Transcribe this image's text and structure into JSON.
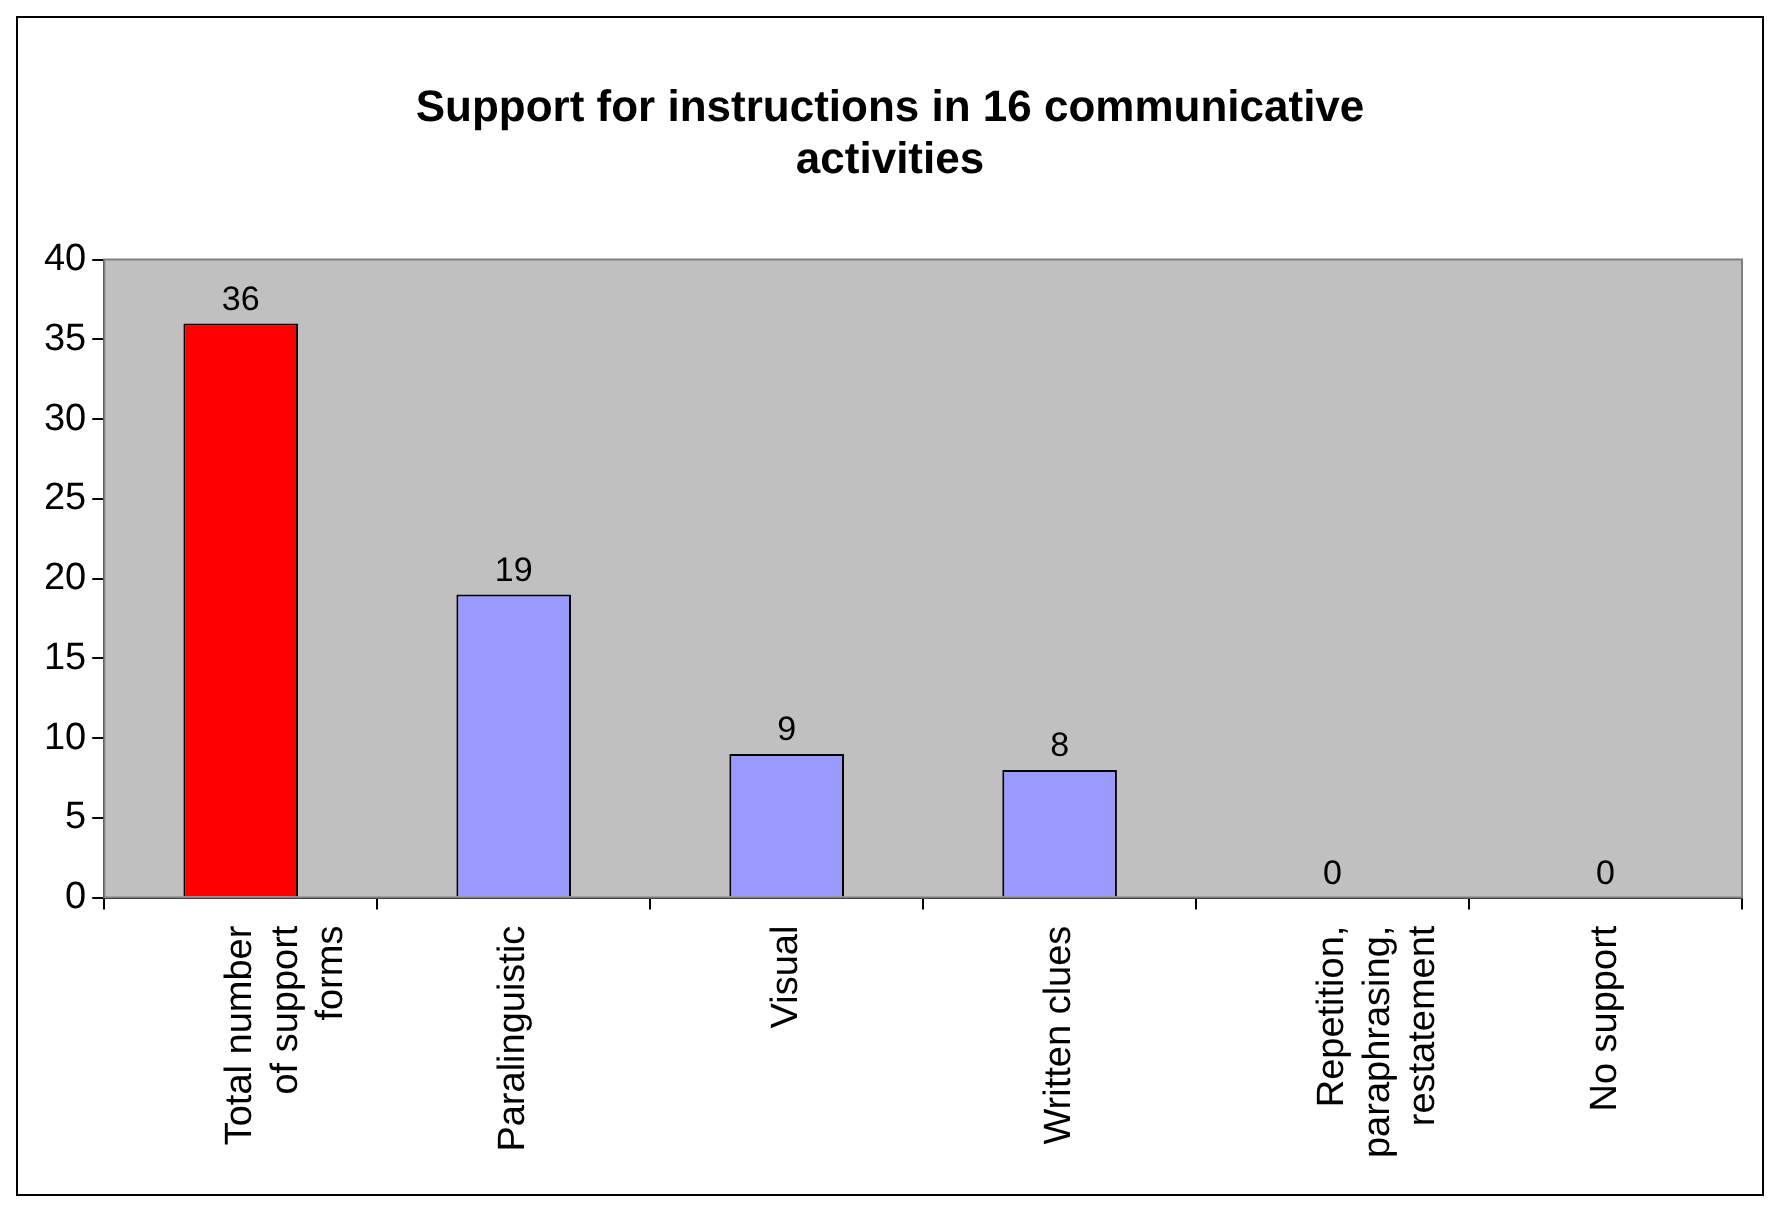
{
  "chart_data": {
    "type": "bar",
    "title": "Support for instructions in 16 communicative activities",
    "categories": [
      "Total number of support forms",
      "Paralinguistic",
      "Visual",
      "Written clues",
      "Repetition, paraphrasing, restatement",
      "No support"
    ],
    "values": [
      36,
      19,
      9,
      8,
      0,
      0
    ],
    "colors": [
      "#ff0000",
      "#9999ff",
      "#9999ff",
      "#9999ff",
      "#9999ff",
      "#9999ff"
    ],
    "ylim": [
      0,
      40
    ],
    "yticks": [
      0,
      5,
      10,
      15,
      20,
      25,
      30,
      35,
      40
    ],
    "grid": false,
    "legend": false,
    "data_labels": true
  }
}
